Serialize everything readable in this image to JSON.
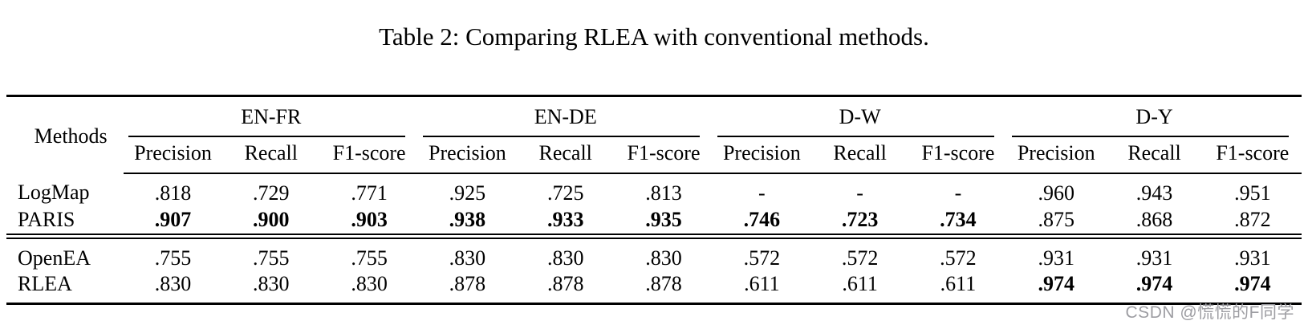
{
  "caption": "Table 2: Comparing RLEA with conventional methods.",
  "watermark": "CSDN @慌慌的F同学",
  "colors": {
    "background": "#ffffff",
    "text": "#000000",
    "rule": "#000000",
    "watermark_gray": "#9d9da2"
  },
  "table": {
    "methods_header": "Methods",
    "group_labels": [
      "EN-FR",
      "EN-DE",
      "D-W",
      "D-Y"
    ],
    "columns": [
      "Precision",
      "Recall",
      "F1-score"
    ],
    "rows": [
      {
        "method": "LogMap",
        "values": [
          ".818",
          ".729",
          ".771",
          ".925",
          ".725",
          ".813",
          "-",
          "-",
          "-",
          ".960",
          ".943",
          ".951"
        ],
        "bold": [
          false,
          false,
          false,
          false,
          false,
          false,
          false,
          false,
          false,
          false,
          false,
          false
        ]
      },
      {
        "method": "PARIS",
        "values": [
          ".907",
          ".900",
          ".903",
          ".938",
          ".933",
          ".935",
          ".746",
          ".723",
          ".734",
          ".875",
          ".868",
          ".872"
        ],
        "bold": [
          true,
          true,
          true,
          true,
          true,
          true,
          true,
          true,
          true,
          false,
          false,
          false
        ]
      },
      {
        "method": "OpenEA",
        "values": [
          ".755",
          ".755",
          ".755",
          ".830",
          ".830",
          ".830",
          ".572",
          ".572",
          ".572",
          ".931",
          ".931",
          ".931"
        ],
        "bold": [
          false,
          false,
          false,
          false,
          false,
          false,
          false,
          false,
          false,
          false,
          false,
          false
        ]
      },
      {
        "method": "RLEA",
        "values": [
          ".830",
          ".830",
          ".830",
          ".878",
          ".878",
          ".878",
          ".611",
          ".611",
          ".611",
          ".974",
          ".974",
          ".974"
        ],
        "bold": [
          false,
          false,
          false,
          false,
          false,
          false,
          false,
          false,
          false,
          true,
          true,
          true
        ]
      }
    ]
  }
}
